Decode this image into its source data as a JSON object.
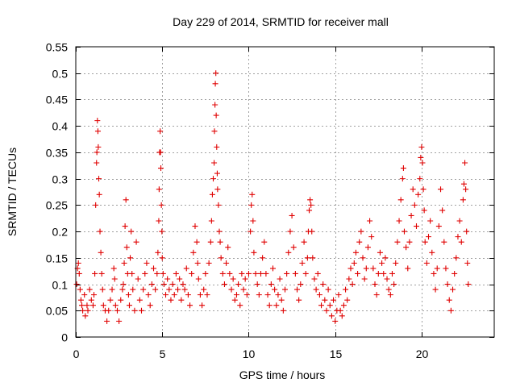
{
  "colors": {
    "series": "#e00000",
    "grid": "#a0a0a0",
    "axis": "#000000"
  },
  "chart_data": {
    "type": "scatter",
    "title": "Day 229 of 2014, SRMTID for receiver mall",
    "xlabel": "GPS time / hours",
    "ylabel": "SRMTID / TECUs",
    "xlim": [
      0,
      24.2
    ],
    "ylim": [
      0,
      0.55
    ],
    "xticks": [
      0,
      5,
      10,
      15,
      20
    ],
    "xtick_labels": [
      "0",
      "5",
      "10",
      "15",
      "20"
    ],
    "yticks": [
      0,
      0.05,
      0.1,
      0.15,
      0.2,
      0.25,
      0.3,
      0.35,
      0.4,
      0.45,
      0.5,
      0.55
    ],
    "ytick_labels": [
      "0",
      "0.05",
      "0.1",
      "0.15",
      "0.2",
      "0.25",
      "0.3",
      "0.35",
      "0.4",
      "0.45",
      "0.5",
      "0.55"
    ],
    "grid": true,
    "marker": "plus",
    "series": [
      {
        "name": "SRMTID",
        "points": [
          [
            0.05,
            0.1
          ],
          [
            0.1,
            0.13
          ],
          [
            0.15,
            0.14
          ],
          [
            0.2,
            0.12
          ],
          [
            0.25,
            0.09
          ],
          [
            0.3,
            0.07
          ],
          [
            0.35,
            0.06
          ],
          [
            0.4,
            0.05
          ],
          [
            0.5,
            0.08
          ],
          [
            0.55,
            0.04
          ],
          [
            0.65,
            0.06
          ],
          [
            0.7,
            0.05
          ],
          [
            0.8,
            0.09
          ],
          [
            0.9,
            0.07
          ],
          [
            1.0,
            0.06
          ],
          [
            1.05,
            0.08
          ],
          [
            1.1,
            0.12
          ],
          [
            1.15,
            0.25
          ],
          [
            1.2,
            0.33
          ],
          [
            1.22,
            0.35
          ],
          [
            1.25,
            0.41
          ],
          [
            1.28,
            0.39
          ],
          [
            1.3,
            0.36
          ],
          [
            1.33,
            0.3
          ],
          [
            1.36,
            0.27
          ],
          [
            1.4,
            0.2
          ],
          [
            1.45,
            0.16
          ],
          [
            1.5,
            0.12
          ],
          [
            1.55,
            0.09
          ],
          [
            1.6,
            0.06
          ],
          [
            1.7,
            0.05
          ],
          [
            1.8,
            0.03
          ],
          [
            1.9,
            0.05
          ],
          [
            2.0,
            0.07
          ],
          [
            2.1,
            0.09
          ],
          [
            2.2,
            0.13
          ],
          [
            2.25,
            0.11
          ],
          [
            2.3,
            0.06
          ],
          [
            2.4,
            0.05
          ],
          [
            2.5,
            0.03
          ],
          [
            2.6,
            0.07
          ],
          [
            2.7,
            0.09
          ],
          [
            2.75,
            0.1
          ],
          [
            2.8,
            0.14
          ],
          [
            2.85,
            0.21
          ],
          [
            2.9,
            0.26
          ],
          [
            2.95,
            0.17
          ],
          [
            3.0,
            0.12
          ],
          [
            3.05,
            0.08
          ],
          [
            3.1,
            0.06
          ],
          [
            3.15,
            0.15
          ],
          [
            3.2,
            0.2
          ],
          [
            3.25,
            0.12
          ],
          [
            3.3,
            0.09
          ],
          [
            3.4,
            0.05
          ],
          [
            3.5,
            0.18
          ],
          [
            3.6,
            0.11
          ],
          [
            3.7,
            0.07
          ],
          [
            3.8,
            0.05
          ],
          [
            3.9,
            0.09
          ],
          [
            4.0,
            0.12
          ],
          [
            4.1,
            0.14
          ],
          [
            4.2,
            0.08
          ],
          [
            4.3,
            0.06
          ],
          [
            4.4,
            0.1
          ],
          [
            4.5,
            0.13
          ],
          [
            4.6,
            0.09
          ],
          [
            4.7,
            0.12
          ],
          [
            4.75,
            0.16
          ],
          [
            4.8,
            0.22
          ],
          [
            4.82,
            0.28
          ],
          [
            4.85,
            0.35
          ],
          [
            4.88,
            0.39
          ],
          [
            4.9,
            0.35
          ],
          [
            4.92,
            0.32
          ],
          [
            4.95,
            0.25
          ],
          [
            4.98,
            0.2
          ],
          [
            5.0,
            0.15
          ],
          [
            5.05,
            0.12
          ],
          [
            5.1,
            0.1
          ],
          [
            5.2,
            0.08
          ],
          [
            5.3,
            0.11
          ],
          [
            5.4,
            0.09
          ],
          [
            5.5,
            0.07
          ],
          [
            5.6,
            0.1
          ],
          [
            5.7,
            0.08
          ],
          [
            5.8,
            0.12
          ],
          [
            5.9,
            0.09
          ],
          [
            6.0,
            0.11
          ],
          [
            6.1,
            0.07
          ],
          [
            6.2,
            0.1
          ],
          [
            6.3,
            0.09
          ],
          [
            6.4,
            0.13
          ],
          [
            6.5,
            0.08
          ],
          [
            6.6,
            0.06
          ],
          [
            6.7,
            0.12
          ],
          [
            6.8,
            0.16
          ],
          [
            6.9,
            0.21
          ],
          [
            7.0,
            0.18
          ],
          [
            7.05,
            0.14
          ],
          [
            7.1,
            0.11
          ],
          [
            7.2,
            0.08
          ],
          [
            7.3,
            0.06
          ],
          [
            7.4,
            0.09
          ],
          [
            7.5,
            0.12
          ],
          [
            7.6,
            0.08
          ],
          [
            7.7,
            0.14
          ],
          [
            7.8,
            0.18
          ],
          [
            7.85,
            0.22
          ],
          [
            7.9,
            0.27
          ],
          [
            7.95,
            0.3
          ],
          [
            8.0,
            0.33
          ],
          [
            8.02,
            0.39
          ],
          [
            8.05,
            0.44
          ],
          [
            8.07,
            0.48
          ],
          [
            8.1,
            0.5
          ],
          [
            8.12,
            0.42
          ],
          [
            8.15,
            0.36
          ],
          [
            8.18,
            0.31
          ],
          [
            8.2,
            0.28
          ],
          [
            8.25,
            0.25
          ],
          [
            8.3,
            0.2
          ],
          [
            8.35,
            0.18
          ],
          [
            8.4,
            0.15
          ],
          [
            8.5,
            0.12
          ],
          [
            8.6,
            0.1
          ],
          [
            8.7,
            0.14
          ],
          [
            8.8,
            0.17
          ],
          [
            8.9,
            0.12
          ],
          [
            9.0,
            0.09
          ],
          [
            9.1,
            0.11
          ],
          [
            9.2,
            0.07
          ],
          [
            9.3,
            0.08
          ],
          [
            9.4,
            0.1
          ],
          [
            9.5,
            0.06
          ],
          [
            9.6,
            0.12
          ],
          [
            9.7,
            0.09
          ],
          [
            9.8,
            0.11
          ],
          [
            9.9,
            0.08
          ],
          [
            10.0,
            0.12
          ],
          [
            10.1,
            0.2
          ],
          [
            10.15,
            0.25
          ],
          [
            10.2,
            0.27
          ],
          [
            10.25,
            0.22
          ],
          [
            10.3,
            0.16
          ],
          [
            10.4,
            0.12
          ],
          [
            10.5,
            0.1
          ],
          [
            10.6,
            0.08
          ],
          [
            10.7,
            0.12
          ],
          [
            10.8,
            0.15
          ],
          [
            10.9,
            0.18
          ],
          [
            11.0,
            0.12
          ],
          [
            11.1,
            0.08
          ],
          [
            11.2,
            0.06
          ],
          [
            11.3,
            0.1
          ],
          [
            11.4,
            0.13
          ],
          [
            11.5,
            0.09
          ],
          [
            11.6,
            0.06
          ],
          [
            11.7,
            0.08
          ],
          [
            11.8,
            0.11
          ],
          [
            11.9,
            0.07
          ],
          [
            12.0,
            0.05
          ],
          [
            12.1,
            0.09
          ],
          [
            12.2,
            0.12
          ],
          [
            12.3,
            0.16
          ],
          [
            12.4,
            0.2
          ],
          [
            12.5,
            0.23
          ],
          [
            12.6,
            0.17
          ],
          [
            12.7,
            0.12
          ],
          [
            12.8,
            0.09
          ],
          [
            12.9,
            0.07
          ],
          [
            13.0,
            0.1
          ],
          [
            13.1,
            0.14
          ],
          [
            13.2,
            0.18
          ],
          [
            13.3,
            0.12
          ],
          [
            13.4,
            0.15
          ],
          [
            13.45,
            0.2
          ],
          [
            13.5,
            0.24
          ],
          [
            13.55,
            0.26
          ],
          [
            13.6,
            0.25
          ],
          [
            13.65,
            0.2
          ],
          [
            13.7,
            0.15
          ],
          [
            13.8,
            0.11
          ],
          [
            13.9,
            0.09
          ],
          [
            14.0,
            0.12
          ],
          [
            14.1,
            0.08
          ],
          [
            14.2,
            0.06
          ],
          [
            14.3,
            0.1
          ],
          [
            14.4,
            0.07
          ],
          [
            14.5,
            0.05
          ],
          [
            14.6,
            0.09
          ],
          [
            14.7,
            0.06
          ],
          [
            14.8,
            0.04
          ],
          [
            14.9,
            0.07
          ],
          [
            15.0,
            0.03
          ],
          [
            15.1,
            0.05
          ],
          [
            15.2,
            0.08
          ],
          [
            15.3,
            0.05
          ],
          [
            15.4,
            0.04
          ],
          [
            15.5,
            0.06
          ],
          [
            15.6,
            0.09
          ],
          [
            15.7,
            0.07
          ],
          [
            15.8,
            0.11
          ],
          [
            15.9,
            0.13
          ],
          [
            16.0,
            0.1
          ],
          [
            16.1,
            0.14
          ],
          [
            16.2,
            0.16
          ],
          [
            16.3,
            0.12
          ],
          [
            16.4,
            0.18
          ],
          [
            16.5,
            0.2
          ],
          [
            16.6,
            0.15
          ],
          [
            16.7,
            0.11
          ],
          [
            16.8,
            0.13
          ],
          [
            16.9,
            0.17
          ],
          [
            17.0,
            0.22
          ],
          [
            17.1,
            0.19
          ],
          [
            17.2,
            0.13
          ],
          [
            17.3,
            0.1
          ],
          [
            17.4,
            0.08
          ],
          [
            17.5,
            0.12
          ],
          [
            17.6,
            0.16
          ],
          [
            17.7,
            0.14
          ],
          [
            17.8,
            0.12
          ],
          [
            17.9,
            0.15
          ],
          [
            18.0,
            0.11
          ],
          [
            18.1,
            0.09
          ],
          [
            18.2,
            0.08
          ],
          [
            18.3,
            0.12
          ],
          [
            18.4,
            0.1
          ],
          [
            18.5,
            0.14
          ],
          [
            18.6,
            0.18
          ],
          [
            18.7,
            0.22
          ],
          [
            18.8,
            0.26
          ],
          [
            18.9,
            0.3
          ],
          [
            18.95,
            0.32
          ],
          [
            19.0,
            0.2
          ],
          [
            19.1,
            0.17
          ],
          [
            19.2,
            0.13
          ],
          [
            19.3,
            0.18
          ],
          [
            19.4,
            0.23
          ],
          [
            19.5,
            0.28
          ],
          [
            19.6,
            0.25
          ],
          [
            19.7,
            0.21
          ],
          [
            19.8,
            0.27
          ],
          [
            19.9,
            0.3
          ],
          [
            19.95,
            0.34
          ],
          [
            20.0,
            0.36
          ],
          [
            20.05,
            0.33
          ],
          [
            20.1,
            0.28
          ],
          [
            20.15,
            0.24
          ],
          [
            20.2,
            0.18
          ],
          [
            20.3,
            0.14
          ],
          [
            20.4,
            0.19
          ],
          [
            20.5,
            0.22
          ],
          [
            20.6,
            0.16
          ],
          [
            20.7,
            0.12
          ],
          [
            20.8,
            0.09
          ],
          [
            20.9,
            0.13
          ],
          [
            21.0,
            0.21
          ],
          [
            21.1,
            0.28
          ],
          [
            21.2,
            0.24
          ],
          [
            21.3,
            0.18
          ],
          [
            21.4,
            0.13
          ],
          [
            21.5,
            0.1
          ],
          [
            21.6,
            0.07
          ],
          [
            21.7,
            0.05
          ],
          [
            21.8,
            0.09
          ],
          [
            21.9,
            0.12
          ],
          [
            22.0,
            0.15
          ],
          [
            22.1,
            0.19
          ],
          [
            22.2,
            0.22
          ],
          [
            22.3,
            0.18
          ],
          [
            22.4,
            0.26
          ],
          [
            22.45,
            0.29
          ],
          [
            22.5,
            0.33
          ],
          [
            22.55,
            0.28
          ],
          [
            22.6,
            0.2
          ],
          [
            22.65,
            0.14
          ],
          [
            22.7,
            0.1
          ]
        ]
      }
    ]
  }
}
